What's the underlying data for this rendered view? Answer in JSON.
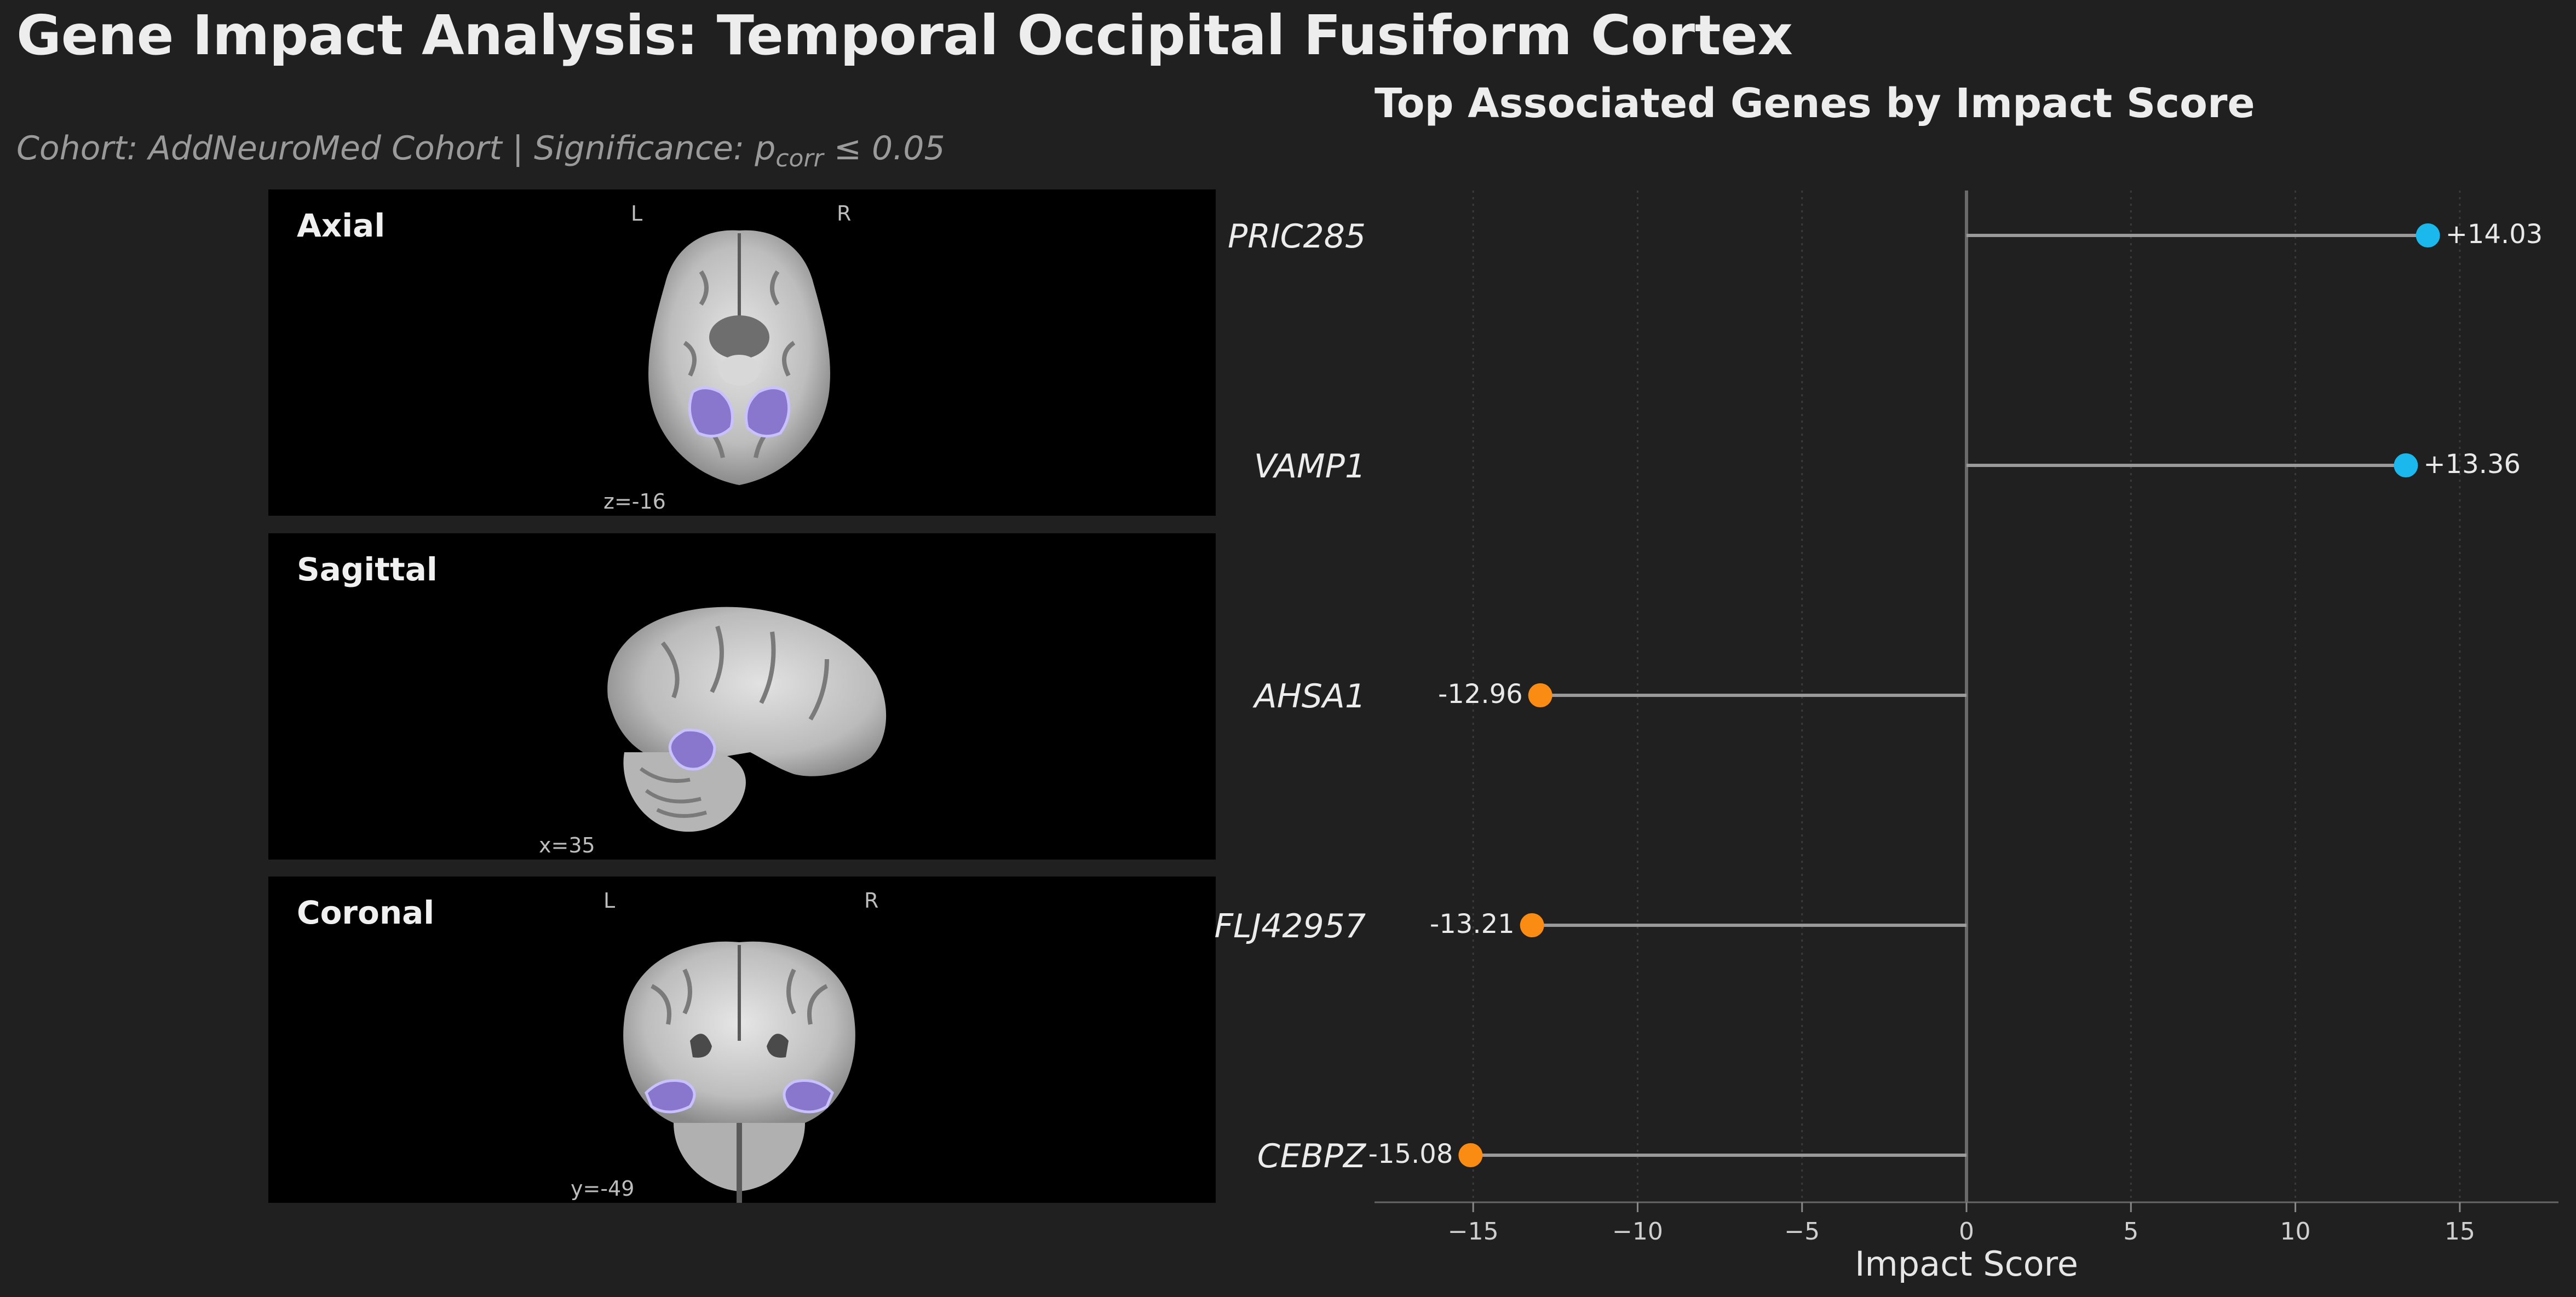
{
  "header": {
    "title": "Gene Impact Analysis: Temporal Occipital Fusiform Cortex",
    "subtitle_prefix": "Cohort: AddNeuroMed Cohort | Significance: p",
    "subtitle_sub": "corr",
    "subtitle_suffix": " ≤ 0.05"
  },
  "brain_views": {
    "axial": {
      "title": "Axial",
      "left_label": "L",
      "right_label": "R",
      "coord": "z=-16"
    },
    "sagittal": {
      "title": "Sagittal",
      "coord": "x=35"
    },
    "coronal": {
      "title": "Coronal",
      "left_label": "L",
      "right_label": "R",
      "coord": "y=-49"
    }
  },
  "colors": {
    "positive": "#1ab8ec",
    "negative": "#fa8c14",
    "stem": "#9a9a9a",
    "highlight": "#8877cc",
    "background": "#202020"
  },
  "chart_data": {
    "type": "lollipop",
    "title": "Top Associated Genes by Impact Score",
    "xlabel": "Impact Score",
    "ylabel": "",
    "xlim": [
      -18,
      18
    ],
    "xticks": [
      -15,
      -10,
      -5,
      0,
      5,
      10,
      15
    ],
    "xtick_labels": [
      "−15",
      "−10",
      "−5",
      "0",
      "5",
      "10",
      "15"
    ],
    "grid": "vertical-dotted",
    "categories": [
      "PRIC285",
      "VAMP1",
      "AHSA1",
      "FLJ42957",
      "CEBPZ"
    ],
    "values": [
      14.03,
      13.36,
      -12.96,
      -13.21,
      -15.08
    ],
    "value_labels": [
      "+14.03",
      "+13.36",
      "-12.96",
      "-13.21",
      "-15.08"
    ]
  }
}
